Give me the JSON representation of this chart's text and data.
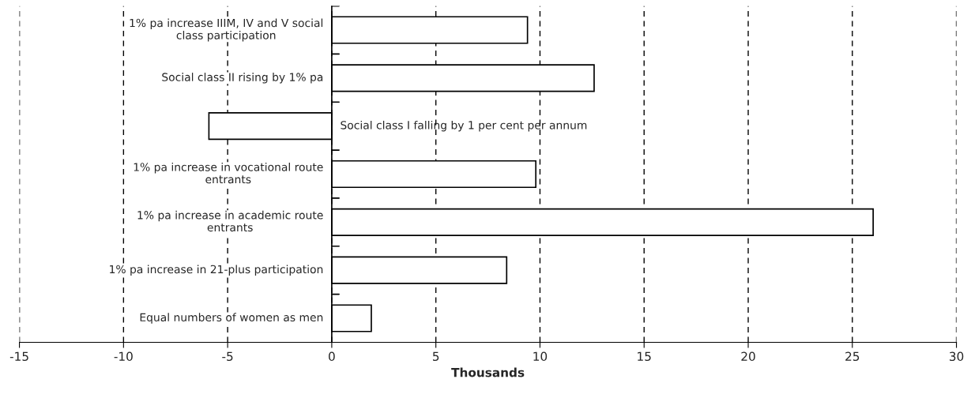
{
  "chart_data": {
    "type": "bar",
    "orientation": "horizontal",
    "xlabel": "Thousands",
    "categories": [
      "1% pa increase IIIM, IV and V social\nclass participation",
      "Social class II rising by 1% pa",
      "Social class I falling by 1 per cent per annum",
      "1% pa increase in vocational route\nentrants",
      "1% pa increase in academic route\nentrants",
      "1% pa increase in 21-plus participation",
      "Equal numbers of women as men"
    ],
    "values": [
      9.4,
      12.6,
      -5.9,
      9.8,
      26.0,
      8.4,
      1.9
    ],
    "color": "#ffffff",
    "xlim": [
      -15,
      30
    ],
    "xticks": [
      -15,
      -10,
      -5,
      0,
      5,
      10,
      15,
      20,
      25,
      30
    ],
    "grid": "x",
    "legend": false
  }
}
